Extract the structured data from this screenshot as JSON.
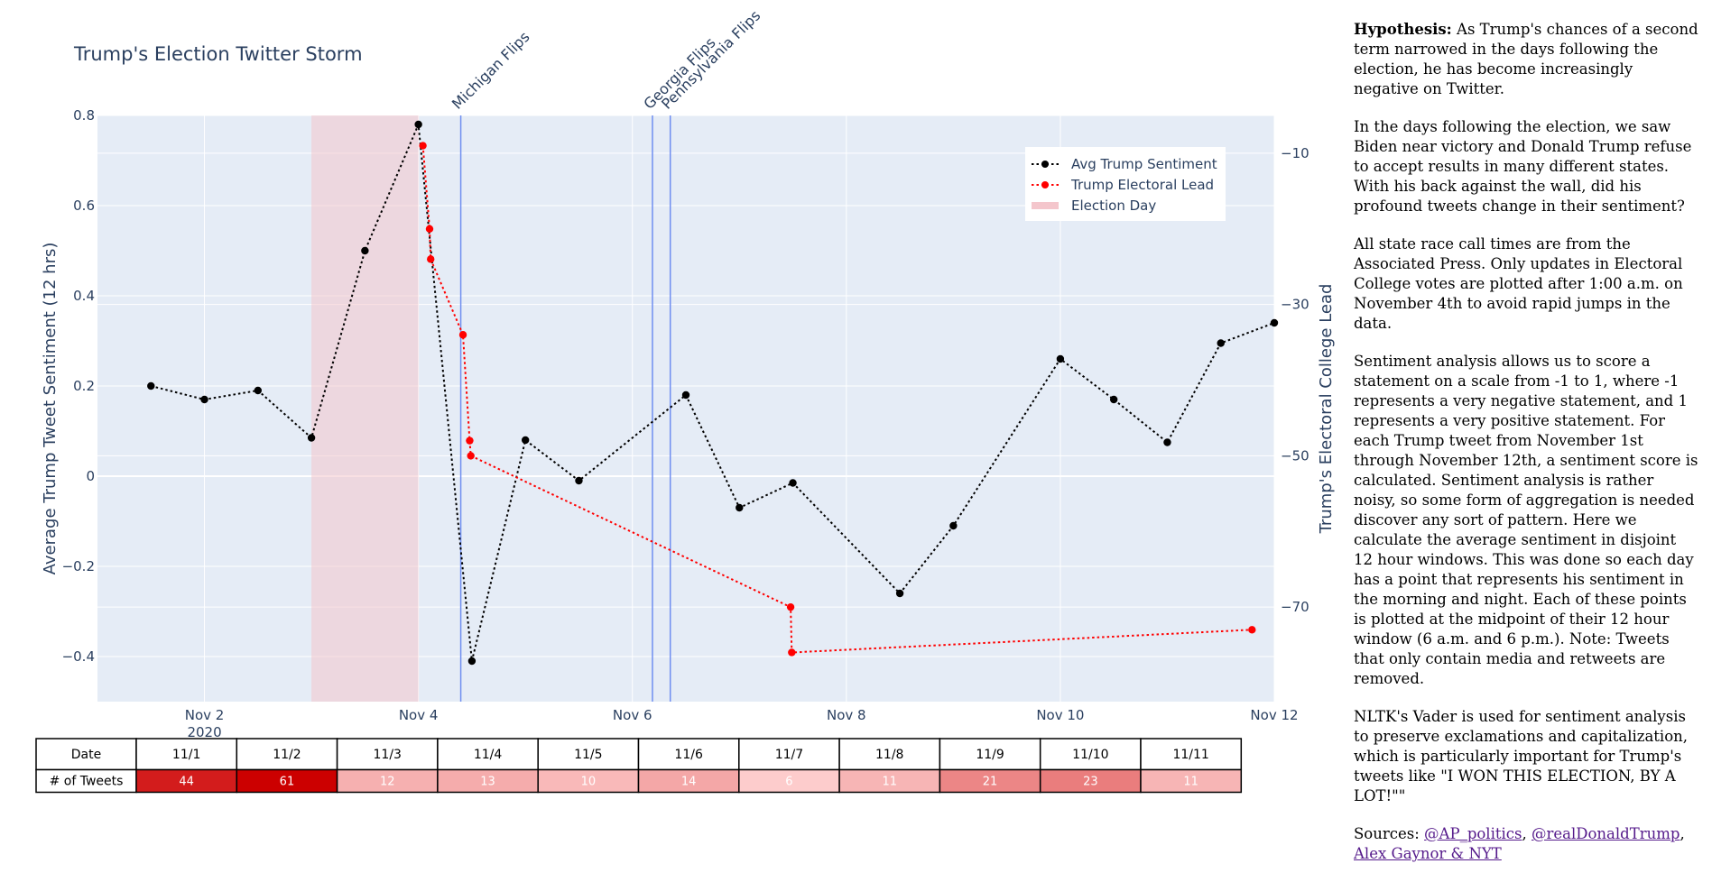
{
  "chart_data": {
    "type": "line",
    "title": "Trump's Election Twitter Storm",
    "ylabel": "Average Trump Tweet Sentiment (12 hrs)",
    "y2label": "Trump's Electoral College Lead",
    "xlim": [
      "2020-11-01",
      "2020-11-12"
    ],
    "ylim": [
      -0.5,
      0.8
    ],
    "y2lim": [
      -82.5,
      -5
    ],
    "x_tick_labels": [
      {
        "date": "2020-11-02",
        "label": "Nov 2",
        "sublabel": "2020"
      },
      {
        "date": "2020-11-04",
        "label": "Nov 4"
      },
      {
        "date": "2020-11-06",
        "label": "Nov 6"
      },
      {
        "date": "2020-11-08",
        "label": "Nov 8"
      },
      {
        "date": "2020-11-10",
        "label": "Nov 10"
      },
      {
        "date": "2020-11-12",
        "label": "Nov 12"
      }
    ],
    "y_tick_labels": [
      {
        "value": 0.8,
        "label": "0.8"
      },
      {
        "value": 0.6,
        "label": "0.6"
      },
      {
        "value": 0.4,
        "label": "0.4"
      },
      {
        "value": 0.2,
        "label": "0.2"
      },
      {
        "value": 0,
        "label": "0"
      },
      {
        "value": -0.2,
        "label": "−0.2"
      },
      {
        "value": -0.4,
        "label": "−0.4"
      }
    ],
    "y2_tick_labels": [
      {
        "value": -10,
        "label": "−10"
      },
      {
        "value": -30,
        "label": "−30"
      },
      {
        "value": -50,
        "label": "−50"
      },
      {
        "value": -70,
        "label": "−70"
      }
    ],
    "grid": true,
    "legend_position": "top-right",
    "series": [
      {
        "name": "Avg Trump Sentiment",
        "color": "#000000",
        "axis": "y",
        "style": "dotted-with-markers",
        "x": [
          "2020-11-01 12:00",
          "2020-11-02 00:00",
          "2020-11-02 12:00",
          "2020-11-03 00:00",
          "2020-11-03 12:00",
          "2020-11-04 00:00",
          "2020-11-04 12:00",
          "2020-11-05 00:00",
          "2020-11-05 12:00",
          "2020-11-06 12:00",
          "2020-11-07 00:00",
          "2020-11-07 12:00",
          "2020-11-08 12:00",
          "2020-11-09 00:00",
          "2020-11-10 00:00",
          "2020-11-10 12:00",
          "2020-11-11 00:00",
          "2020-11-11 12:00",
          "2020-11-12 00:00"
        ],
        "y": [
          0.2,
          0.17,
          0.19,
          0.085,
          0.5,
          0.78,
          -0.41,
          0.08,
          -0.01,
          0.18,
          -0.07,
          -0.015,
          -0.26,
          -0.11,
          0.26,
          0.17,
          0.075,
          0.295,
          0.34
        ]
      },
      {
        "name": "Trump Electoral Lead",
        "color": "#ff0000",
        "axis": "y2",
        "style": "dotted-with-markers",
        "x": [
          "2020-11-04 01:00",
          "2020-11-04 02:30",
          "2020-11-04 02:45",
          "2020-11-04 10:00",
          "2020-11-04 11:30",
          "2020-11-04 11:45",
          "2020-11-07 11:30",
          "2020-11-07 11:45",
          "2020-11-11 19:00"
        ],
        "y": [
          -9,
          -20,
          -24,
          -34,
          -48,
          -50,
          -70,
          -76,
          -73
        ]
      }
    ],
    "shaded_regions": [
      {
        "name": "Election Day",
        "x0": "2020-11-03 00:00",
        "x1": "2020-11-04 00:00",
        "color": "#f4c6cc"
      }
    ],
    "annotations": [
      {
        "label": "Michigan Flips",
        "x": "2020-11-04 09:30"
      },
      {
        "label": "Georgia Flips",
        "x": "2020-11-06 04:30"
      },
      {
        "label": "Pennsylvania Flips",
        "x": "2020-11-06 08:30"
      }
    ],
    "table": {
      "row_labels": [
        "Date",
        "# of Tweets"
      ],
      "columns": [
        {
          "date": "11/1",
          "tweets": 44
        },
        {
          "date": "11/2",
          "tweets": 61
        },
        {
          "date": "11/3",
          "tweets": 12
        },
        {
          "date": "11/4",
          "tweets": 13
        },
        {
          "date": "11/5",
          "tweets": 10
        },
        {
          "date": "11/6",
          "tweets": 14
        },
        {
          "date": "11/7",
          "tweets": 6
        },
        {
          "date": "11/8",
          "tweets": 11
        },
        {
          "date": "11/9",
          "tweets": 21
        },
        {
          "date": "11/10",
          "tweets": 23
        },
        {
          "date": "11/11",
          "tweets": 11
        }
      ]
    }
  },
  "side_text": {
    "hypothesis_label": "Hypothesis:",
    "hypothesis": "As Trump's chances of a second term narrowed in the days following the election, he has become increasingly negative on Twitter.",
    "p2": "In the days following the election, we saw Biden near victory and Donald Trump refuse to accept results in many different states. With his back against the wall, did his profound tweets change in their sentiment?",
    "p3": "All state race call times are from the Associated Press. Only updates in Electoral College votes are plotted after 1:00 a.m. on November 4th to avoid rapid jumps in the data.",
    "p4": "Sentiment analysis allows us to score a statement on a scale from -1 to 1, where -1 represents a very negative statement, and 1 represents a very positive statement. For each Trump tweet from November 1st through November 12th, a sentiment score is calculated. Sentiment analysis is rather noisy, so some form of aggregation is needed discover any sort of pattern. Here we calculate the average sentiment in disjoint 12 hour windows. This was done so each day has a point that represents his sentiment in the morning and night. Each of these points is plotted at the midpoint of their 12 hour window (6 a.m. and 6 p.m.). Note: Tweets that only contain media and retweets are removed.",
    "p5": "NLTK's Vader is used for sentiment analysis to preserve exclamations and capitalization, which is particularly important for Trump's tweets like \"I WON THIS ELECTION, BY A LOT!\"\"",
    "sources_label": "Sources:",
    "link1": "@AP_politics",
    "sep1": ",",
    "link2": "@realDonaldTrump",
    "sep2": ",",
    "link3": "Alex Gaynor & NYT"
  }
}
